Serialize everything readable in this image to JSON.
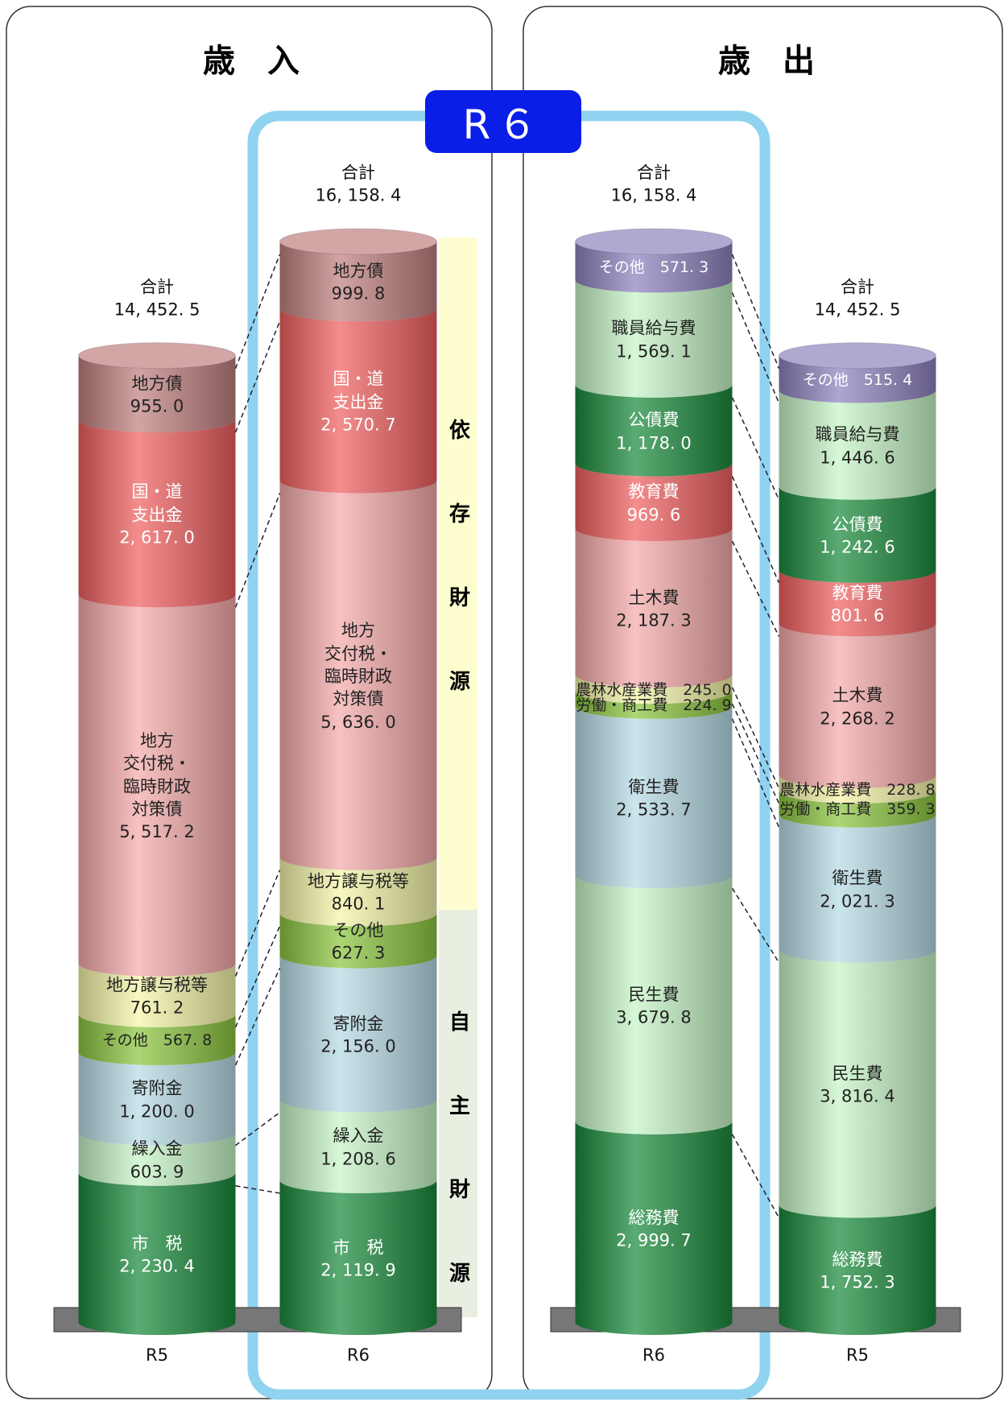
{
  "badge": "R６",
  "chart_data": [
    {
      "type": "bar",
      "stacked": true,
      "title": "歳　入",
      "categories": [
        "R5",
        "R6"
      ],
      "total_caption": "合計",
      "totals": [
        14452.5,
        16158.4
      ],
      "total_labels": [
        "14, 452. 5",
        "16, 158. 4"
      ],
      "groups": [
        "依存財源",
        "自主財源"
      ],
      "series": [
        {
          "name": "市　税",
          "color": "#1a8a3c",
          "values": [
            2230.4,
            2119.9
          ],
          "value_labels": [
            "2, 230. 4",
            "2, 119. 9"
          ]
        },
        {
          "name": "繰入金",
          "color": "#c6f5c6",
          "values": [
            603.9,
            1208.6
          ],
          "value_labels": [
            "603. 9",
            "1, 208. 6"
          ]
        },
        {
          "name": "寄附金",
          "color": "#b7dbe6",
          "values": [
            1200.0,
            2156.0
          ],
          "value_labels": [
            "1, 200. 0",
            "2, 156. 0"
          ]
        },
        {
          "name": "その他",
          "color": "#8cc63f",
          "values": [
            567.8,
            627.3
          ],
          "value_labels": [
            "567. 8",
            "627. 3"
          ]
        },
        {
          "name": "地方譲与税等",
          "color": "#f5f5a8",
          "values": [
            761.2,
            840.1
          ],
          "value_labels": [
            "761. 2",
            "840. 1"
          ]
        },
        {
          "name": "地方\n交付税・\n臨時財政\n対策債",
          "color": "#f5aaaa",
          "values": [
            5517.2,
            5636.0
          ],
          "value_labels": [
            "5, 517. 2",
            "5, 636. 0"
          ]
        },
        {
          "name": "国・道\n支出金",
          "color": "#f06060",
          "values": [
            2617.0,
            2570.7
          ],
          "value_labels": [
            "2, 617. 0",
            "2, 570. 7"
          ]
        },
        {
          "name": "地方債",
          "color": "#c08080",
          "values": [
            955.0,
            999.8
          ],
          "value_labels": [
            "955. 0",
            "999. 8"
          ]
        }
      ]
    },
    {
      "type": "bar",
      "stacked": true,
      "title": "歳　出",
      "categories": [
        "R6",
        "R5"
      ],
      "total_caption": "合計",
      "totals": [
        16158.4,
        14452.5
      ],
      "total_labels": [
        "16, 158. 4",
        "14, 452. 5"
      ],
      "series": [
        {
          "name": "総務費",
          "color": "#1a8a3c",
          "values": [
            2999.7,
            1752.3
          ],
          "value_labels": [
            "2, 999. 7",
            "1, 752. 3"
          ]
        },
        {
          "name": "民生費",
          "color": "#c6f5c6",
          "values": [
            3679.8,
            3816.4
          ],
          "value_labels": [
            "3, 679. 8",
            "3, 816. 4"
          ]
        },
        {
          "name": "衛生費",
          "color": "#b7dbe6",
          "values": [
            2533.7,
            2021.3
          ],
          "value_labels": [
            "2, 533. 7",
            "2, 021. 3"
          ]
        },
        {
          "name": "労働・商工費",
          "color": "#8cc63f",
          "values": [
            224.9,
            359.3
          ],
          "value_labels": [
            "224. 9",
            "359. 3"
          ]
        },
        {
          "name": "農林水産業費",
          "color": "#f5f5a8",
          "values": [
            245.0,
            228.8
          ],
          "value_labels": [
            "245. 0",
            "228. 8"
          ]
        },
        {
          "name": "土木費",
          "color": "#f5aaaa",
          "values": [
            2187.3,
            2268.2
          ],
          "value_labels": [
            "2, 187. 3",
            "2, 268. 2"
          ]
        },
        {
          "name": "教育費",
          "color": "#f06060",
          "values": [
            969.6,
            801.6
          ],
          "value_labels": [
            "969. 6",
            "801. 6"
          ]
        },
        {
          "name": "公債費",
          "color": "#1a8a3c",
          "values": [
            1178.0,
            1242.6
          ],
          "value_labels": [
            "1, 178. 0",
            "1, 242. 6"
          ]
        },
        {
          "name": "職員給与費",
          "color": "#c6f5c6",
          "values": [
            1569.1,
            1446.6
          ],
          "value_labels": [
            "1, 569. 1",
            "1, 446. 6"
          ]
        },
        {
          "name": "その他",
          "color": "#8f82bf",
          "values": [
            571.3,
            515.4
          ],
          "value_labels": [
            "571. 3",
            "515. 4"
          ]
        }
      ]
    }
  ]
}
